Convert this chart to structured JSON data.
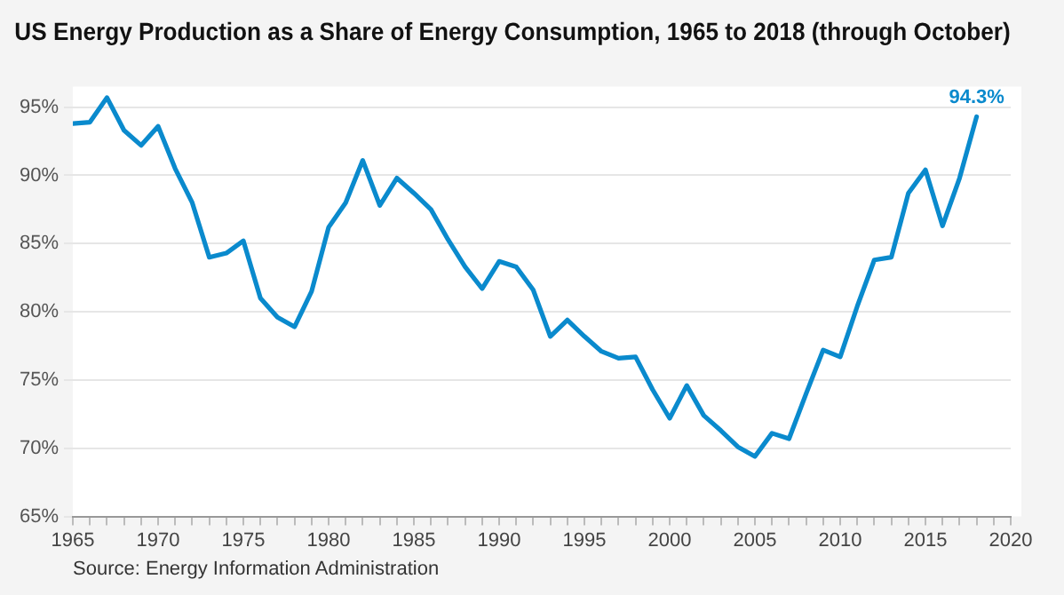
{
  "chart_data": {
    "type": "line",
    "title": "US Energy Production as a Share of Energy Consumption, 1965 to 2018 (through October)",
    "x": [
      1965,
      1966,
      1967,
      1968,
      1969,
      1970,
      1971,
      1972,
      1973,
      1974,
      1975,
      1976,
      1977,
      1978,
      1979,
      1980,
      1981,
      1982,
      1983,
      1984,
      1985,
      1986,
      1987,
      1988,
      1989,
      1990,
      1991,
      1992,
      1993,
      1994,
      1995,
      1996,
      1997,
      1998,
      1999,
      2000,
      2001,
      2002,
      2003,
      2004,
      2005,
      2006,
      2007,
      2008,
      2009,
      2010,
      2011,
      2012,
      2013,
      2014,
      2015,
      2016,
      2017,
      2018
    ],
    "series": [
      {
        "color": "#0a8acd",
        "values": [
          93.8,
          93.9,
          95.7,
          93.3,
          92.2,
          93.6,
          90.5,
          88.0,
          84.0,
          84.3,
          85.2,
          81.0,
          79.6,
          78.9,
          81.5,
          86.2,
          88.0,
          91.1,
          87.8,
          89.8,
          88.7,
          87.5,
          85.3,
          83.3,
          81.7,
          83.7,
          83.3,
          81.6,
          78.2,
          79.4,
          78.2,
          77.1,
          76.6,
          76.7,
          74.3,
          72.2,
          74.6,
          72.4,
          71.3,
          70.1,
          69.4,
          71.1,
          70.7,
          74.0,
          77.2,
          76.7,
          80.4,
          83.8,
          84.0,
          88.7,
          90.4,
          86.3,
          89.8,
          94.3
        ]
      }
    ],
    "xlim": [
      1965,
      2020
    ],
    "xticks": [
      1965,
      {
        "value": 1966,
        "label": null
      },
      {
        "value": 1967,
        "label": null
      },
      {
        "value": 1968,
        "label": null
      },
      {
        "value": 1969,
        "label": null
      },
      1970,
      {
        "value": 1971,
        "label": null
      },
      {
        "value": 1972,
        "label": null
      },
      {
        "value": 1973,
        "label": null
      },
      {
        "value": 1974,
        "label": null
      },
      1975,
      {
        "value": 1976,
        "label": null
      },
      {
        "value": 1977,
        "label": null
      },
      {
        "value": 1978,
        "label": null
      },
      {
        "value": 1979,
        "label": null
      },
      1980,
      {
        "value": 1981,
        "label": null
      },
      {
        "value": 1982,
        "label": null
      },
      {
        "value": 1983,
        "label": null
      },
      {
        "value": 1984,
        "label": null
      },
      1985,
      {
        "value": 1986,
        "label": null
      },
      {
        "value": 1987,
        "label": null
      },
      {
        "value": 1988,
        "label": null
      },
      {
        "value": 1989,
        "label": null
      },
      1990,
      {
        "value": 1991,
        "label": null
      },
      {
        "value": 1992,
        "label": null
      },
      {
        "value": 1993,
        "label": null
      },
      {
        "value": 1994,
        "label": null
      },
      1995,
      {
        "value": 1996,
        "label": null
      },
      {
        "value": 1997,
        "label": null
      },
      {
        "value": 1998,
        "label": null
      },
      {
        "value": 1999,
        "label": null
      },
      2000,
      {
        "value": 2001,
        "label": null
      },
      {
        "value": 2002,
        "label": null
      },
      {
        "value": 2003,
        "label": null
      },
      {
        "value": 2004,
        "label": null
      },
      2005,
      {
        "value": 2006,
        "label": null
      },
      {
        "value": 2007,
        "label": null
      },
      {
        "value": 2008,
        "label": null
      },
      {
        "value": 2009,
        "label": null
      },
      2010,
      {
        "value": 2011,
        "label": null
      },
      {
        "value": 2012,
        "label": null
      },
      {
        "value": 2013,
        "label": null
      },
      {
        "value": 2014,
        "label": null
      },
      2015,
      {
        "value": 2016,
        "label": null
      },
      {
        "value": 2017,
        "label": null
      },
      {
        "value": 2018,
        "label": null
      },
      {
        "value": 2019,
        "label": null
      },
      2020
    ],
    "ylim": [
      65,
      96.5
    ],
    "yticks": [
      {
        "value": 65,
        "label": "65%"
      },
      {
        "value": 70,
        "label": "70%"
      },
      {
        "value": 75,
        "label": "75%"
      },
      {
        "value": 80,
        "label": "80%"
      },
      {
        "value": 85,
        "label": "85%"
      },
      {
        "value": 90,
        "label": "90%"
      },
      {
        "value": 95,
        "label": "95%"
      }
    ],
    "grid": "y",
    "legend": false,
    "marker": "none",
    "line_style": "solid",
    "annotations": [
      {
        "text": "94.3%",
        "x": 2018,
        "y": 94.3
      },
      "Source: Energy Information Administration"
    ]
  }
}
